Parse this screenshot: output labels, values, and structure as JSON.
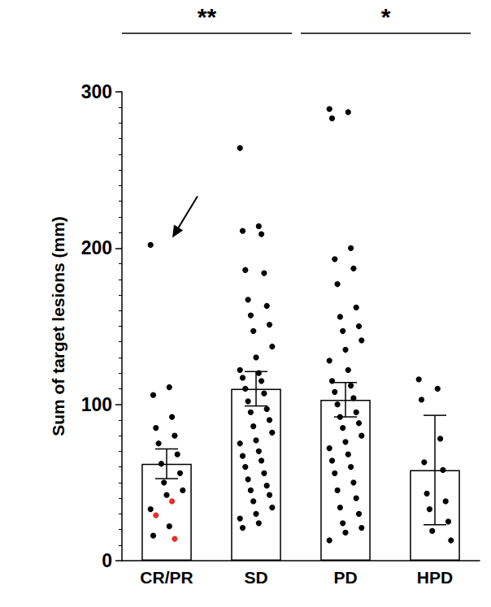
{
  "chart_data": {
    "type": "bar",
    "categories": [
      "CR/PR",
      "SD",
      "PD",
      "HPD"
    ],
    "values": [
      62,
      110,
      103,
      58
    ],
    "errors": [
      9.5,
      11,
      11,
      35
    ],
    "color": "#ffffff",
    "points": [
      [
        202,
        111,
        106,
        92,
        85,
        80,
        75,
        68,
        62,
        56,
        50,
        45,
        42,
        33,
        22,
        16
      ],
      [
        264,
        214,
        211,
        209,
        186,
        184,
        167,
        163,
        157,
        151,
        147,
        137,
        130,
        122,
        120,
        117,
        115,
        110,
        107,
        102,
        97,
        95,
        90,
        86,
        82,
        77,
        75,
        70,
        67,
        64,
        60,
        56,
        52,
        48,
        45,
        42,
        38,
        34,
        30,
        27,
        24,
        21
      ],
      [
        289,
        287,
        283,
        200,
        193,
        187,
        177,
        162,
        156,
        150,
        147,
        141,
        135,
        128,
        122,
        115,
        112,
        108,
        104,
        100,
        95,
        92,
        88,
        85,
        80,
        76,
        72,
        68,
        64,
        60,
        56,
        50,
        45,
        40,
        34,
        30,
        24,
        21,
        18,
        13
      ],
      [
        116,
        110,
        103,
        78,
        63,
        58,
        43,
        38,
        33,
        25,
        19,
        13
      ]
    ],
    "highlight_points": [
      [
        38,
        29,
        14
      ],
      [],
      [],
      []
    ],
    "point_color": "#000000",
    "highlight_color": "#e8302a",
    "ylabel": "Sum of target lesions (mm)",
    "ylim": [
      0,
      300
    ],
    "yticks": [
      0,
      100,
      200,
      300
    ],
    "annotations": [
      {
        "text": "**",
        "from": "CR/PR",
        "to": "SD"
      },
      {
        "text": "*",
        "from": "PD",
        "to": "HPD"
      }
    ],
    "arrow": {
      "category": "CR/PR",
      "value": 202
    },
    "grid": false
  }
}
